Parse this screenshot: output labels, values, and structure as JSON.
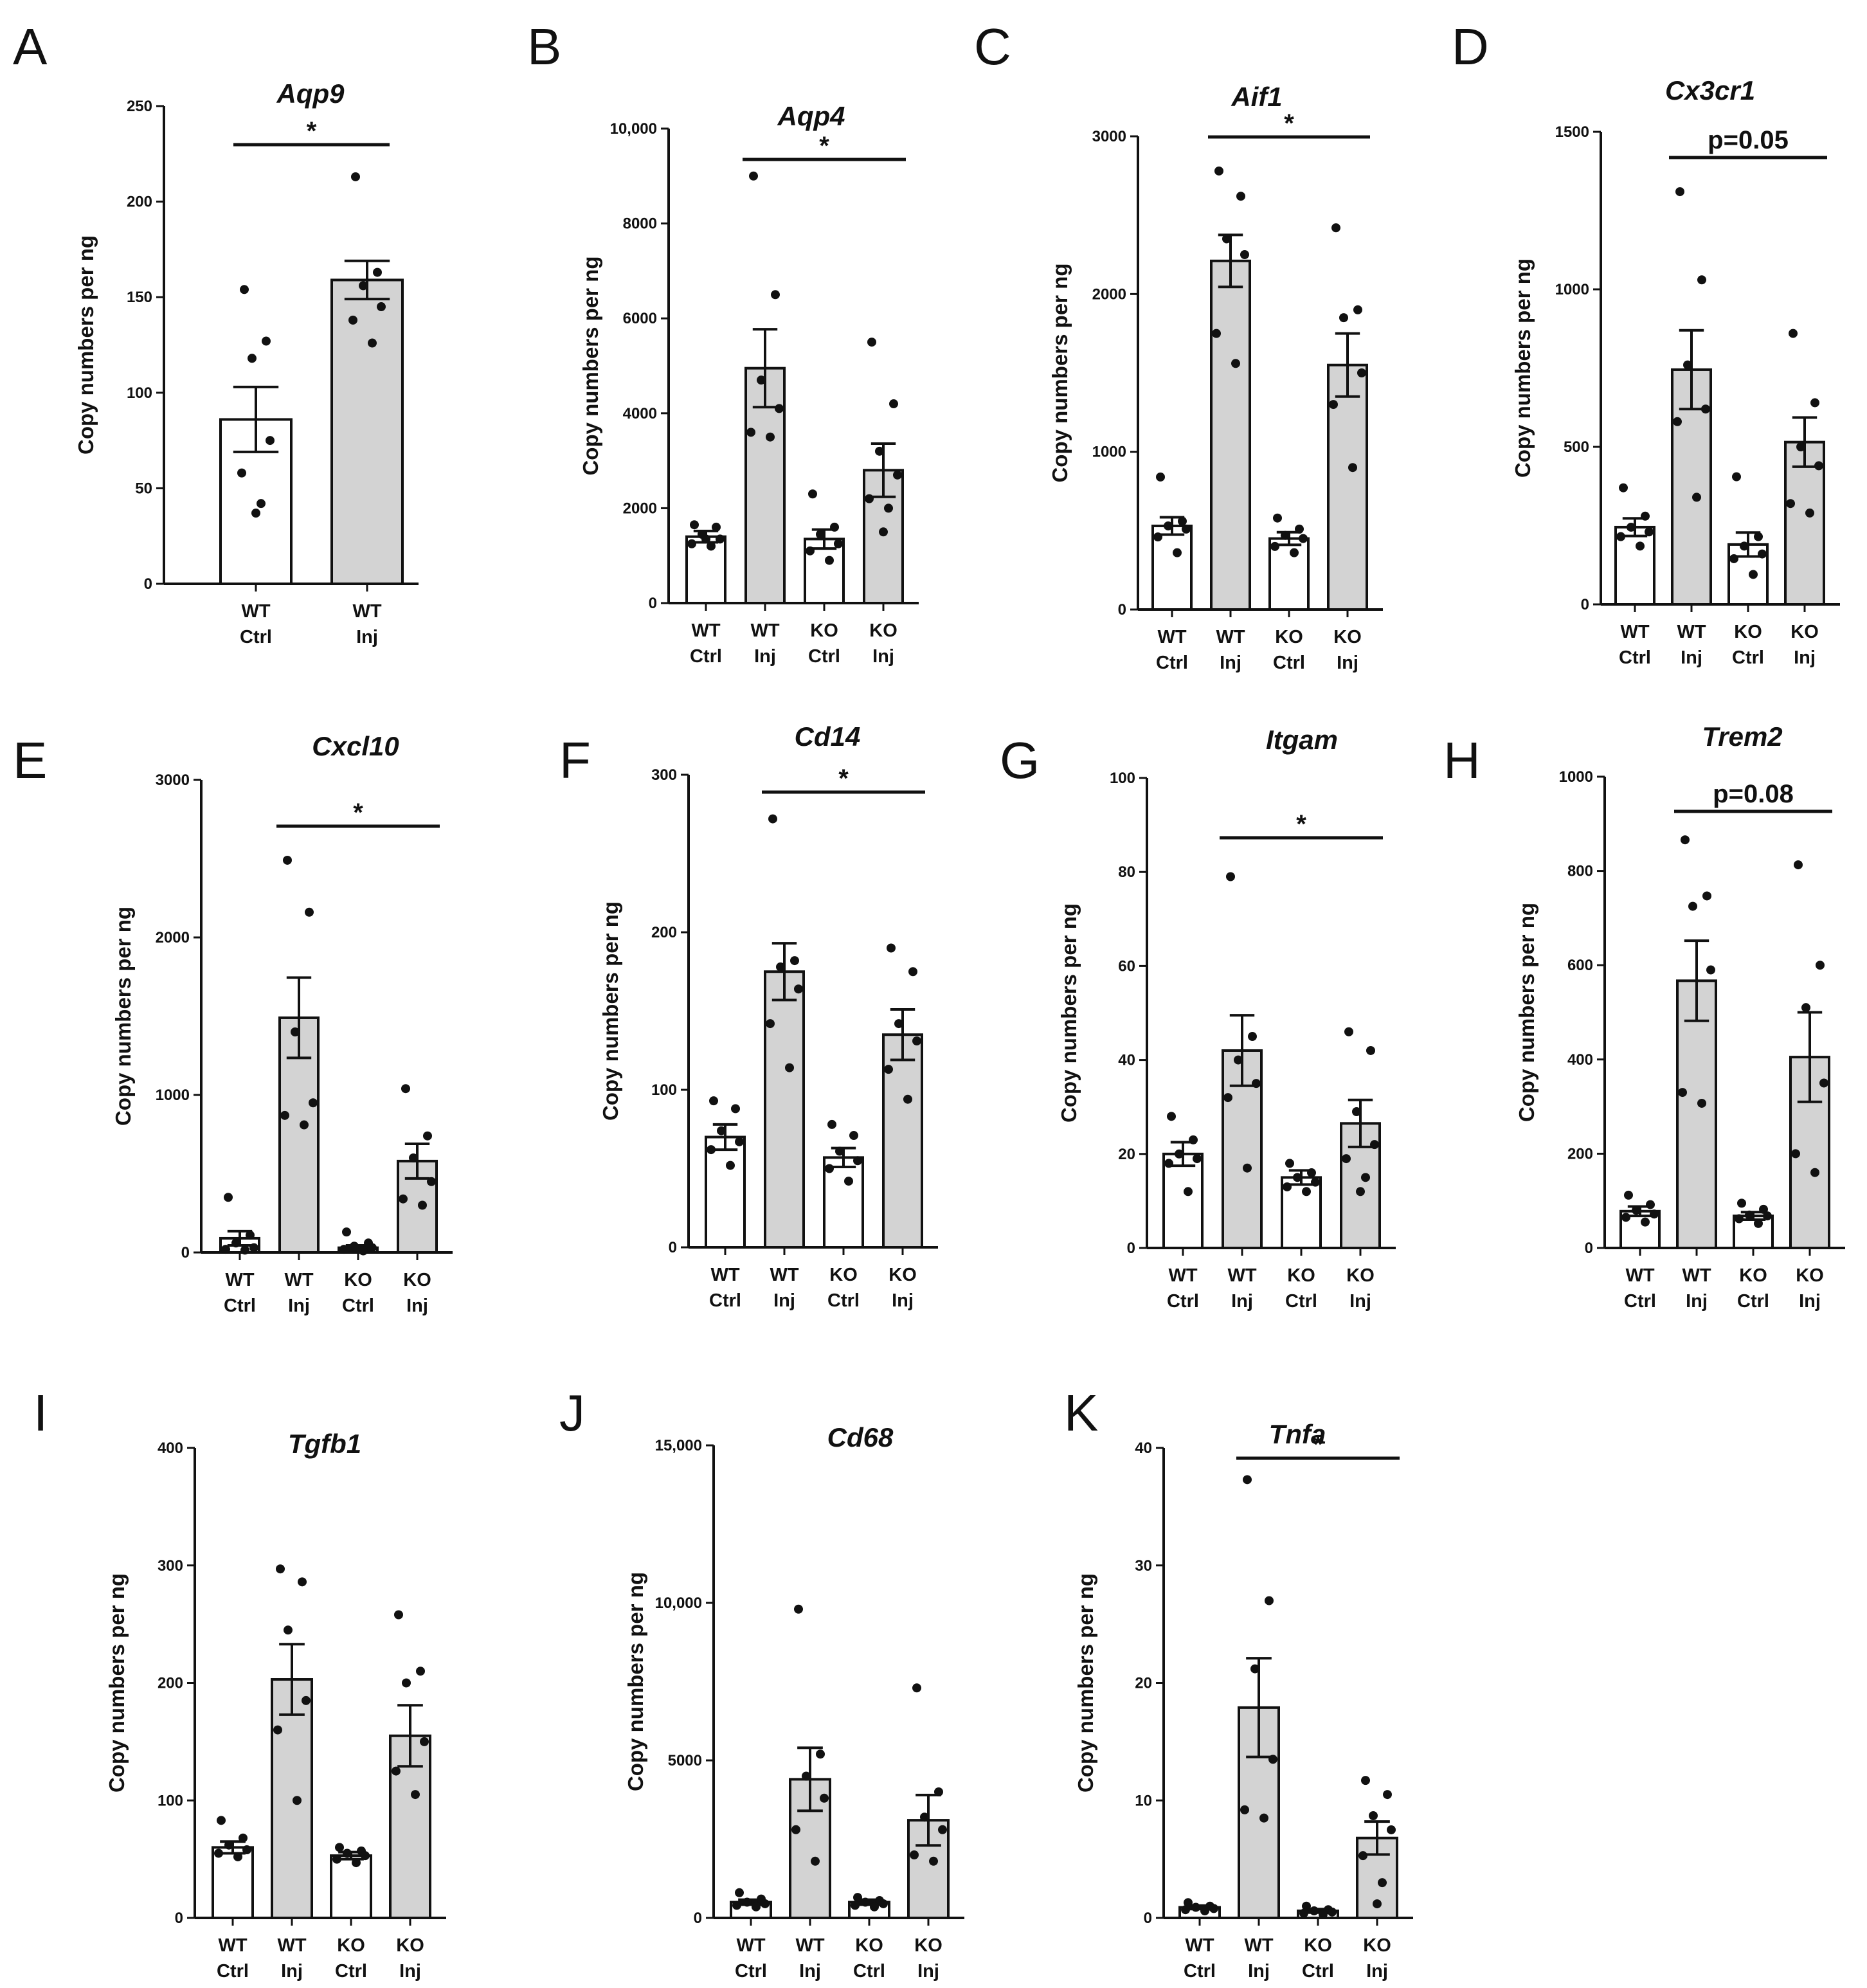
{
  "figure": {
    "y_axis_label": "Copy numbers per ng",
    "colors": {
      "ctrl_fill": "#ffffff",
      "inj_fill": "#d3d3d3",
      "ink": "#111111"
    }
  },
  "chart_data": [
    {
      "panel": "A",
      "type": "bar",
      "title": "Aqp9",
      "ylabel": "Copy numbers per ng",
      "ylim": [
        0,
        250
      ],
      "yticks": [
        0,
        50,
        100,
        150,
        200,
        250
      ],
      "ytick_labels": [
        "0",
        "50",
        "100",
        "150",
        "200",
        "250"
      ],
      "categories": [
        [
          "WT",
          "Ctrl"
        ],
        [
          "WT",
          "Inj"
        ]
      ],
      "groups": [
        "ctrl",
        "inj"
      ],
      "means": [
        86,
        159
      ],
      "sem": [
        17,
        10
      ],
      "points": [
        [
          154,
          127,
          118,
          75,
          58,
          42,
          37
        ],
        [
          213,
          163,
          156,
          145,
          138,
          126
        ]
      ],
      "significance": [
        {
          "from": 0,
          "to": 1,
          "label": "*"
        }
      ]
    },
    {
      "panel": "B",
      "type": "bar",
      "title": "Aqp4",
      "ylabel": "Copy numbers per ng",
      "ylim": [
        0,
        10000
      ],
      "yticks": [
        0,
        2000,
        4000,
        6000,
        8000,
        10000
      ],
      "ytick_labels": [
        "0",
        "2000",
        "4000",
        "6000",
        "8000",
        "10,000"
      ],
      "categories": [
        [
          "WT",
          "Ctrl"
        ],
        [
          "WT",
          "Inj"
        ],
        [
          "KO",
          "Ctrl"
        ],
        [
          "KO",
          "Inj"
        ]
      ],
      "groups": [
        "ctrl",
        "inj",
        "ctrl",
        "inj"
      ],
      "means": [
        1400,
        4950,
        1350,
        2800
      ],
      "sem": [
        120,
        820,
        200,
        560
      ],
      "points": [
        [
          1650,
          1600,
          1450,
          1350,
          1250,
          1200,
          1350
        ],
        [
          9000,
          6500,
          4700,
          4100,
          3600,
          3500
        ],
        [
          2300,
          1600,
          1450,
          1250,
          1100,
          900
        ],
        [
          5500,
          4200,
          3200,
          2700,
          2200,
          2000,
          1500
        ]
      ],
      "significance": [
        {
          "from": 1,
          "to": 3,
          "label": "*"
        }
      ]
    },
    {
      "panel": "C",
      "type": "bar",
      "title": "Aif1",
      "ylabel": "Copy numbers per ng",
      "ylim": [
        0,
        3000
      ],
      "yticks": [
        0,
        1000,
        2000,
        3000
      ],
      "ytick_labels": [
        "0",
        "1000",
        "2000",
        "3000"
      ],
      "categories": [
        [
          "WT",
          "Ctrl"
        ],
        [
          "WT",
          "Inj"
        ],
        [
          "KO",
          "Ctrl"
        ],
        [
          "KO",
          "Inj"
        ]
      ],
      "groups": [
        "ctrl",
        "inj",
        "ctrl",
        "inj"
      ],
      "means": [
        530,
        2210,
        450,
        1550
      ],
      "sem": [
        55,
        165,
        40,
        200
      ],
      "points": [
        [
          840,
          560,
          530,
          510,
          460,
          360
        ],
        [
          2780,
          2620,
          2350,
          2250,
          1750,
          1560
        ],
        [
          580,
          510,
          470,
          450,
          400,
          360
        ],
        [
          2420,
          1900,
          1850,
          1500,
          1300,
          900
        ]
      ],
      "significance": [
        {
          "from": 1,
          "to": 3,
          "label": "*"
        }
      ]
    },
    {
      "panel": "D",
      "type": "bar",
      "title": "Cx3cr1",
      "ylabel": "Copy numbers per ng",
      "ylim": [
        0,
        1500
      ],
      "yticks": [
        0,
        500,
        1000,
        1500
      ],
      "ytick_labels": [
        "0",
        "500",
        "1000",
        "1500"
      ],
      "categories": [
        [
          "WT",
          "Ctrl"
        ],
        [
          "WT",
          "Inj"
        ],
        [
          "KO",
          "Ctrl"
        ],
        [
          "KO",
          "Inj"
        ]
      ],
      "groups": [
        "ctrl",
        "inj",
        "ctrl",
        "inj"
      ],
      "means": [
        245,
        745,
        190,
        515
      ],
      "sem": [
        28,
        125,
        38,
        78
      ],
      "points": [
        [
          370,
          280,
          245,
          230,
          215,
          185
        ],
        [
          1310,
          1030,
          760,
          620,
          580,
          340
        ],
        [
          405,
          215,
          185,
          160,
          145,
          95
        ],
        [
          860,
          640,
          500,
          440,
          320,
          290
        ]
      ],
      "significance": [
        {
          "from": 1,
          "to": 3,
          "label": "p=0.05"
        }
      ]
    },
    {
      "panel": "E",
      "type": "bar",
      "title": "Cxcl10",
      "ylabel": "Copy numbers per ng",
      "ylim": [
        0,
        3000
      ],
      "yticks": [
        0,
        1000,
        2000,
        3000
      ],
      "ytick_labels": [
        "0",
        "1000",
        "2000",
        "3000"
      ],
      "categories": [
        [
          "WT",
          "Ctrl"
        ],
        [
          "WT",
          "Inj"
        ],
        [
          "KO",
          "Ctrl"
        ],
        [
          "KO",
          "Inj"
        ]
      ],
      "groups": [
        "ctrl",
        "inj",
        "ctrl",
        "inj"
      ],
      "means": [
        90,
        1490,
        30,
        580
      ],
      "sem": [
        45,
        255,
        15,
        110
      ],
      "points": [
        [
          350,
          110,
          60,
          30,
          20,
          15
        ],
        [
          2490,
          2160,
          1400,
          950,
          870,
          810
        ],
        [
          130,
          60,
          40,
          30,
          20,
          10
        ],
        [
          1040,
          740,
          600,
          450,
          340,
          300
        ]
      ],
      "significance": [
        {
          "from": 1,
          "to": 3,
          "label": "*"
        }
      ]
    },
    {
      "panel": "F",
      "type": "bar",
      "title": "Cd14",
      "ylabel": "Copy numbers per ng",
      "ylim": [
        0,
        300
      ],
      "yticks": [
        0,
        100,
        200,
        300
      ],
      "ytick_labels": [
        "0",
        "100",
        "200",
        "300"
      ],
      "categories": [
        [
          "WT",
          "Ctrl"
        ],
        [
          "WT",
          "Inj"
        ],
        [
          "KO",
          "Ctrl"
        ],
        [
          "KO",
          "Inj"
        ]
      ],
      "groups": [
        "ctrl",
        "inj",
        "ctrl",
        "inj"
      ],
      "means": [
        70,
        175,
        57,
        135
      ],
      "sem": [
        8,
        18,
        6,
        16
      ],
      "points": [
        [
          93,
          88,
          74,
          67,
          62,
          52
        ],
        [
          272,
          182,
          178,
          164,
          142,
          114
        ],
        [
          78,
          71,
          61,
          55,
          50,
          42
        ],
        [
          190,
          175,
          142,
          131,
          113,
          94
        ]
      ],
      "significance": [
        {
          "from": 1,
          "to": 3,
          "label": "*"
        }
      ]
    },
    {
      "panel": "G",
      "type": "bar",
      "title": "Itgam",
      "ylabel": "Copy numbers per ng",
      "ylim": [
        0,
        100
      ],
      "yticks": [
        0,
        20,
        40,
        60,
        80,
        100
      ],
      "ytick_labels": [
        "0",
        "20",
        "40",
        "60",
        "80",
        "100"
      ],
      "categories": [
        [
          "WT",
          "Ctrl"
        ],
        [
          "WT",
          "Inj"
        ],
        [
          "KO",
          "Ctrl"
        ],
        [
          "KO",
          "Inj"
        ]
      ],
      "groups": [
        "ctrl",
        "inj",
        "ctrl",
        "inj"
      ],
      "means": [
        20,
        42,
        15,
        26.5
      ],
      "sem": [
        2.5,
        7.5,
        1.5,
        5
      ],
      "points": [
        [
          28,
          23,
          20,
          19,
          18,
          12
        ],
        [
          79,
          45,
          40,
          35,
          32,
          17
        ],
        [
          18,
          16,
          15,
          14,
          13,
          12
        ],
        [
          46,
          42,
          29,
          22,
          19,
          15,
          12
        ]
      ],
      "significance": [
        {
          "from": 1,
          "to": 3,
          "label": "*"
        }
      ]
    },
    {
      "panel": "H",
      "type": "bar",
      "title": "Trem2",
      "ylabel": "Copy numbers per ng",
      "ylim": [
        0,
        1000
      ],
      "yticks": [
        0,
        200,
        400,
        600,
        800,
        1000
      ],
      "ytick_labels": [
        "0",
        "200",
        "400",
        "600",
        "800",
        "1000"
      ],
      "categories": [
        [
          "WT",
          "Ctrl"
        ],
        [
          "WT",
          "Inj"
        ],
        [
          "KO",
          "Ctrl"
        ],
        [
          "KO",
          "Inj"
        ]
      ],
      "groups": [
        "ctrl",
        "inj",
        "ctrl",
        "inj"
      ],
      "means": [
        78,
        567,
        68,
        405
      ],
      "sem": [
        10,
        85,
        8,
        95
      ],
      "points": [
        [
          112,
          92,
          80,
          72,
          65,
          55
        ],
        [
          866,
          747,
          725,
          590,
          330,
          307
        ],
        [
          95,
          82,
          70,
          68,
          62,
          52
        ],
        [
          813,
          600,
          510,
          350,
          200,
          160
        ]
      ],
      "significance": [
        {
          "from": 1,
          "to": 3,
          "label": "p=0.08"
        }
      ]
    },
    {
      "panel": "I",
      "type": "bar",
      "title": "Tgfb1",
      "ylabel": "Copy numbers per ng",
      "ylim": [
        0,
        400
      ],
      "yticks": [
        0,
        100,
        200,
        300,
        400
      ],
      "ytick_labels": [
        "0",
        "100",
        "200",
        "300",
        "400"
      ],
      "categories": [
        [
          "WT",
          "Ctrl"
        ],
        [
          "WT",
          "Inj"
        ],
        [
          "KO",
          "Ctrl"
        ],
        [
          "KO",
          "Inj"
        ]
      ],
      "groups": [
        "ctrl",
        "inj",
        "ctrl",
        "inj"
      ],
      "means": [
        60,
        203,
        53,
        155
      ],
      "sem": [
        5,
        30,
        3,
        26
      ],
      "points": [
        [
          83,
          68,
          62,
          58,
          55,
          52
        ],
        [
          297,
          286,
          245,
          185,
          160,
          100
        ],
        [
          60,
          57,
          55,
          53,
          50,
          47
        ],
        [
          258,
          210,
          200,
          150,
          125,
          105
        ]
      ],
      "significance": []
    },
    {
      "panel": "J",
      "type": "bar",
      "title": "Cd68",
      "ylabel": "Copy numbers per ng",
      "ylim": [
        0,
        15000
      ],
      "yticks": [
        0,
        5000,
        10000,
        15000
      ],
      "ytick_labels": [
        "0",
        "5000",
        "10,000",
        "15,000"
      ],
      "categories": [
        [
          "WT",
          "Ctrl"
        ],
        [
          "WT",
          "Inj"
        ],
        [
          "KO",
          "Ctrl"
        ],
        [
          "KO",
          "Inj"
        ]
      ],
      "groups": [
        "ctrl",
        "inj",
        "ctrl",
        "inj"
      ],
      "means": [
        500,
        4400,
        500,
        3100
      ],
      "sem": [
        80,
        1000,
        80,
        800
      ],
      "points": [
        [
          800,
          600,
          500,
          450,
          400,
          350
        ],
        [
          9800,
          5200,
          4500,
          3800,
          2800,
          1800
        ],
        [
          650,
          550,
          500,
          450,
          400,
          350
        ],
        [
          7300,
          4000,
          3200,
          2800,
          2000,
          1800
        ]
      ],
      "significance": []
    },
    {
      "panel": "K",
      "type": "bar",
      "title": "Tnfa",
      "ylabel": "Copy numbers per ng",
      "ylim": [
        0,
        40
      ],
      "yticks": [
        0,
        10,
        20,
        30,
        40
      ],
      "ytick_labels": [
        "0",
        "10",
        "20",
        "30",
        "40"
      ],
      "categories": [
        [
          "WT",
          "Ctrl"
        ],
        [
          "WT",
          "Inj"
        ],
        [
          "KO",
          "Ctrl"
        ],
        [
          "KO",
          "Inj"
        ]
      ],
      "groups": [
        "ctrl",
        "inj",
        "ctrl",
        "inj"
      ],
      "means": [
        0.9,
        17.9,
        0.6,
        6.8
      ],
      "sem": [
        0.15,
        4.2,
        0.15,
        1.4
      ],
      "points": [
        [
          1.3,
          1.0,
          0.9,
          0.8,
          0.7,
          0.6
        ],
        [
          37.3,
          27,
          21.2,
          13.5,
          9.2,
          8.5
        ],
        [
          1.0,
          0.7,
          0.6,
          0.5,
          0.4,
          0.3
        ],
        [
          11.7,
          10.5,
          8.7,
          7.5,
          5.3,
          3.0,
          1.2
        ]
      ],
      "significance": [
        {
          "from": 1,
          "to": 3,
          "label": "*"
        }
      ]
    }
  ]
}
